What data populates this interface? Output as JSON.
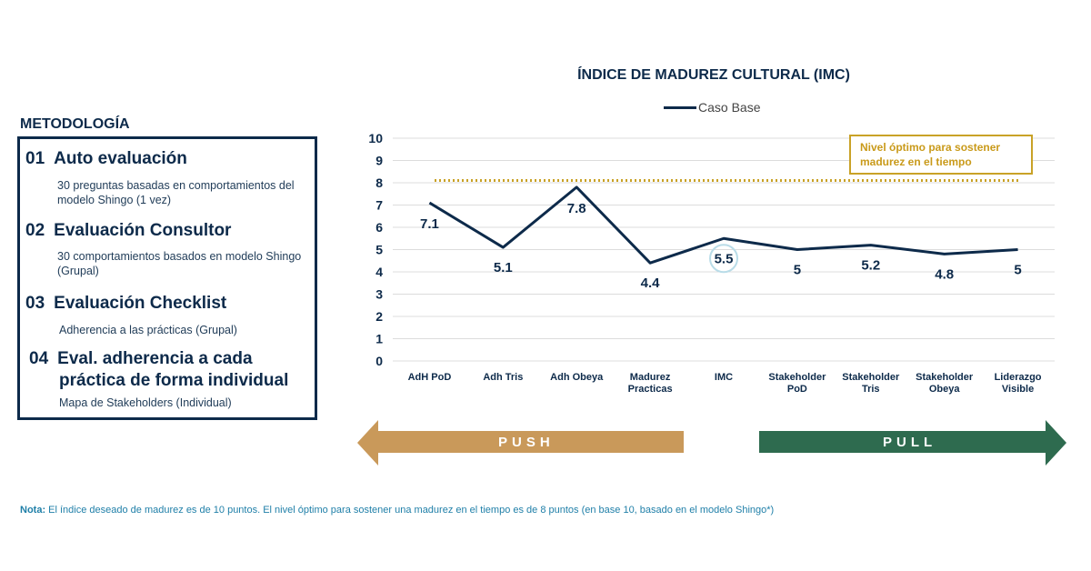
{
  "methodology": {
    "title": "METODOLOGÍA",
    "steps": [
      {
        "num": "01",
        "title": "Auto evaluación",
        "desc": "30 preguntas basadas en comportamientos del modelo Shingo (1 vez)"
      },
      {
        "num": "02",
        "title": "Evaluación Consultor",
        "desc": "30 comportamientos basados en modelo Shingo (Grupal)"
      },
      {
        "num": "03",
        "title": "Evaluación Checklist",
        "desc": "Adherencia a las prácticas (Grupal)"
      },
      {
        "num": "04",
        "title_line1": "Eval. adherencia a cada",
        "title_line2": "práctica de forma individual",
        "desc": "Mapa de Stakeholders (Individual)"
      }
    ]
  },
  "chart_data": {
    "type": "line",
    "title": "ÍNDICE DE MADUREZ CULTURAL (IMC)",
    "categories": [
      "AdH PoD",
      "Adh Tris",
      "Adh Obeya",
      "Madurez Practicas",
      "IMC",
      "Stakeholder PoD",
      "Stakeholder Tris",
      "Stakeholder Obeya",
      "Liderazgo Visible"
    ],
    "series": [
      {
        "name": "Caso Base",
        "values": [
          7.1,
          5.1,
          7.8,
          4.4,
          5.5,
          5,
          5.2,
          4.8,
          5
        ],
        "color": "#0d2a4a"
      }
    ],
    "data_labels": [
      "7.1",
      "5.1",
      "7.8",
      "4.4",
      "5.5",
      "5",
      "5.2",
      "4.8",
      "5"
    ],
    "highlighted_category": "IMC",
    "ylim": [
      0,
      10
    ],
    "yticks": [
      "0",
      "1",
      "2",
      "3",
      "4",
      "5",
      "6",
      "7",
      "8",
      "9",
      "10"
    ],
    "reference_line": {
      "value": 8.1,
      "style": "dotted",
      "color": "#c9a227",
      "annotation": "Nivel óptimo para sostener madurez en el tiempo"
    },
    "grid": true,
    "legend_position": "top-center"
  },
  "arrows": {
    "push": {
      "label": "PUSH",
      "color": "#c9995a"
    },
    "pull": {
      "label": "PULL",
      "color": "#2e6b4f"
    }
  },
  "note": {
    "prefix": "Nota:",
    "text": " El índice deseado de madurez es de 10 puntos. El nivel óptimo para sostener una madurez en el tiempo es de 8 puntos (en base 10, basado en el modelo Shingo*)"
  }
}
